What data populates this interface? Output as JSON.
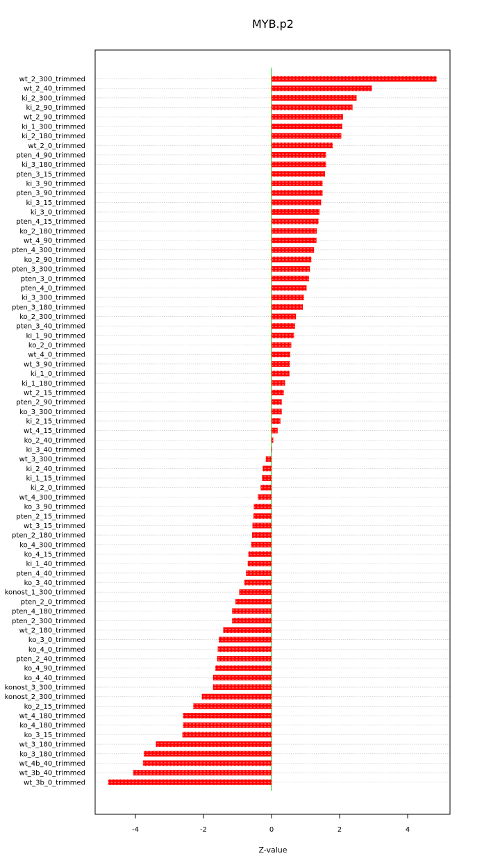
{
  "chart_data": {
    "type": "bar",
    "orientation": "horizontal",
    "title": "MYB.p2",
    "xlabel": "Z-value",
    "ylabel": "",
    "xlim": [
      -4.9,
      5.2
    ],
    "xticks": [
      -4,
      -2,
      0,
      2,
      4
    ],
    "grid": "horizontal dotted gridlines",
    "legend": "none",
    "colors": {
      "bar": "#ff0000",
      "bar_stripe": "#ffffff",
      "zero_line": "#00cc00",
      "grid": "#c8c8c8",
      "axes": "#000000"
    },
    "categories": [
      "wt_2_300_trimmed",
      "wt_2_40_trimmed",
      "ki_2_300_trimmed",
      "ki_2_90_trimmed",
      "wt_2_90_trimmed",
      "ki_1_300_trimmed",
      "ki_2_180_trimmed",
      "wt_2_0_trimmed",
      "pten_4_90_trimmed",
      "ki_3_180_trimmed",
      "pten_3_15_trimmed",
      "ki_3_90_trimmed",
      "pten_3_90_trimmed",
      "ki_3_15_trimmed",
      "ki_3_0_trimmed",
      "pten_4_15_trimmed",
      "ko_2_180_trimmed",
      "wt_4_90_trimmed",
      "pten_4_300_trimmed",
      "ko_2_90_trimmed",
      "pten_3_300_trimmed",
      "pten_3_0_trimmed",
      "pten_4_0_trimmed",
      "ki_3_300_trimmed",
      "pten_3_180_trimmed",
      "ko_2_300_trimmed",
      "pten_3_40_trimmed",
      "ki_1_90_trimmed",
      "ko_2_0_trimmed",
      "wt_4_0_trimmed",
      "wt_3_90_trimmed",
      "ki_1_0_trimmed",
      "ki_1_180_trimmed",
      "wt_2_15_trimmed",
      "pten_2_90_trimmed",
      "ko_3_300_trimmed",
      "ki_2_15_trimmed",
      "wt_4_15_trimmed",
      "ko_2_40_trimmed",
      "ki_3_40_trimmed",
      "wt_3_300_trimmed",
      "ki_2_40_trimmed",
      "ki_1_15_trimmed",
      "ki_2_0_trimmed",
      "wt_4_300_trimmed",
      "ko_3_90_trimmed",
      "pten_2_15_trimmed",
      "wt_3_15_trimmed",
      "pten_2_180_trimmed",
      "ko_4_300_trimmed",
      "ko_4_15_trimmed",
      "ki_1_40_trimmed",
      "pten_4_40_trimmed",
      "ko_3_40_trimmed",
      "konost_1_300_trimmed",
      "pten_2_0_trimmed",
      "pten_4_180_trimmed",
      "pten_2_300_trimmed",
      "wt_2_180_trimmed",
      "ko_3_0_trimmed",
      "ko_4_0_trimmed",
      "pten_2_40_trimmed",
      "ko_4_90_trimmed",
      "ko_4_40_trimmed",
      "konost_3_300_trimmed",
      "konost_2_300_trimmed",
      "ko_2_15_trimmed",
      "wt_4_180_trimmed",
      "ko_4_180_trimmed",
      "ko_3_15_trimmed",
      "wt_3_180_trimmed",
      "ko_3_180_trimmed",
      "wt_4b_40_trimmed",
      "wt_3b_40_trimmed",
      "wt_3b_0_trimmed"
    ],
    "values": [
      4.85,
      2.95,
      2.5,
      2.38,
      2.1,
      2.08,
      2.05,
      1.8,
      1.6,
      1.6,
      1.57,
      1.5,
      1.5,
      1.46,
      1.41,
      1.38,
      1.33,
      1.32,
      1.25,
      1.17,
      1.13,
      1.1,
      1.03,
      0.95,
      0.92,
      0.72,
      0.69,
      0.66,
      0.58,
      0.55,
      0.54,
      0.53,
      0.4,
      0.36,
      0.3,
      0.3,
      0.26,
      0.18,
      0.05,
      0.01,
      -0.17,
      -0.26,
      -0.28,
      -0.32,
      -0.4,
      -0.52,
      -0.53,
      -0.56,
      -0.57,
      -0.6,
      -0.68,
      -0.7,
      -0.75,
      -0.8,
      -0.95,
      -1.06,
      -1.16,
      -1.16,
      -1.42,
      -1.55,
      -1.58,
      -1.6,
      -1.65,
      -1.72,
      -1.72,
      -2.05,
      -2.3,
      -2.6,
      -2.6,
      -2.62,
      -3.4,
      -3.75,
      -3.78,
      -4.07,
      -4.8
    ]
  }
}
